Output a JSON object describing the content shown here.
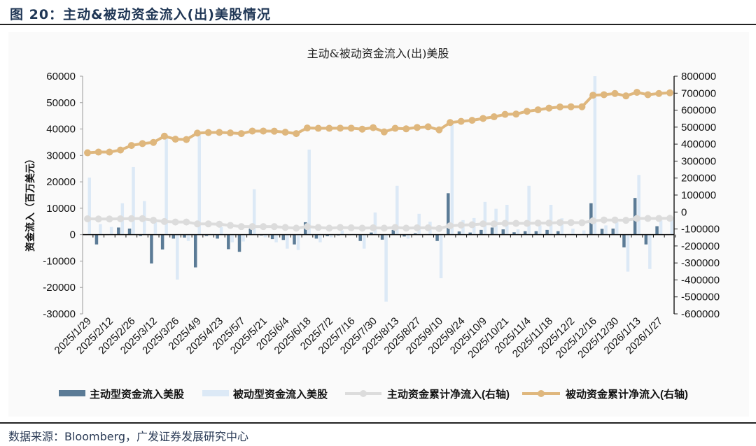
{
  "figure": {
    "caption": "图 20：主动&被动资金流入(出)美股情况",
    "source": "数据来源：Bloomberg，广发证券发展研究中心"
  },
  "chart_data": {
    "type": "bar+line",
    "title": "主动&被动资金流入(出)美股",
    "ylabel": "资金流入（百万美元）",
    "ylabel_right": "",
    "ylim": [
      -30000,
      60000
    ],
    "yticks": [
      60000,
      50000,
      40000,
      30000,
      20000,
      10000,
      0,
      -10000,
      -20000,
      -30000
    ],
    "ylim_right": [
      -600000,
      800000
    ],
    "yticks_right": [
      800000,
      700000,
      600000,
      500000,
      400000,
      300000,
      200000,
      100000,
      0,
      -100000,
      -200000,
      -300000,
      -400000,
      -500000,
      -600000
    ],
    "x_tick_labels": [
      "2025/1/29",
      "2025/2/12",
      "2025/2/26",
      "2025/3/12",
      "2025/3/26",
      "2025/4/9",
      "2025/4/23",
      "2025/5/7",
      "2025/5/21",
      "2025/6/4",
      "2025/6/18",
      "2025/7/2",
      "2025/7/16",
      "2025/7/30",
      "2025/8/13",
      "2025/8/27",
      "2025/9/10",
      "2025/9/24",
      "2025/10/9",
      "2025/10/21",
      "2025/11/4",
      "2025/11/18",
      "2025/12/2",
      "2025/12/16",
      "2025/12/30",
      "2026/1/13",
      "2026/1/27"
    ],
    "x_frequency": "weekly",
    "grid": false,
    "legend_position": "bottom",
    "series": [
      {
        "name": "主动型资金流入美股",
        "type": "bar",
        "axis": "left",
        "color": "#5b7b96",
        "values": [
          0,
          -3700,
          0,
          2700,
          2300,
          -500,
          -10900,
          -5600,
          -1500,
          -1100,
          -12400,
          -500,
          -1500,
          -5500,
          -6500,
          2300,
          -300,
          -1700,
          -2000,
          -3700,
          4700,
          -1500,
          -600,
          -300,
          -200,
          -2400,
          800,
          -1900,
          1800,
          -700,
          500,
          200,
          -2400,
          15700,
          1200,
          800,
          1800,
          2700,
          2000,
          900,
          1300,
          1300,
          1800,
          1300,
          200,
          0,
          11900,
          2200,
          2300,
          -4800,
          13900,
          -3700,
          3200,
          0
        ]
      },
      {
        "name": "被动型资金流入美股",
        "type": "bar",
        "axis": "left",
        "color": "#dce9f6",
        "values": [
          21600,
          4000,
          2900,
          11900,
          25600,
          12700,
          4700,
          37500,
          -17000,
          -2400,
          37800,
          0,
          2900,
          -2900,
          -2600,
          17200,
          -1000,
          -2900,
          -5300,
          -5800,
          32200,
          -2900,
          -1000,
          1600,
          300,
          -5300,
          8400,
          -25400,
          18500,
          -1500,
          7900,
          4900,
          -16500,
          42100,
          5500,
          6300,
          12400,
          9800,
          11300,
          2000,
          18500,
          3500,
          11300,
          6200,
          2300,
          1600,
          60000,
          3500,
          4700,
          -14000,
          22600,
          -13000,
          5400,
          6300
        ]
      },
      {
        "name": "主动资金累计净流入(右轴)",
        "type": "line",
        "axis": "right",
        "color": "#dcdcdc",
        "values": [
          -40000,
          -41000,
          -41000,
          -40000,
          -39000,
          -39000,
          -49000,
          -56000,
          -59000,
          -59000,
          -70000,
          -70000,
          -72000,
          -79000,
          -86000,
          -86000,
          -86000,
          -86000,
          -91000,
          -95000,
          -86000,
          -91000,
          -95000,
          -91000,
          -93000,
          -95000,
          -93000,
          -95000,
          -91000,
          -95000,
          -93000,
          -93000,
          -97000,
          -81000,
          -77000,
          -75000,
          -70000,
          -70000,
          -67000,
          -67000,
          -67000,
          -65000,
          -65000,
          -62000,
          -62000,
          -63000,
          -52000,
          -47000,
          -47000,
          -49000,
          -38000,
          -38000,
          -38000,
          -37000
        ]
      },
      {
        "name": "被动资金累计净流入(右轴)",
        "type": "line",
        "axis": "right",
        "color": "#dfb77d",
        "values": [
          349000,
          353000,
          353000,
          365000,
          392000,
          403000,
          410000,
          447000,
          429000,
          427000,
          465000,
          468000,
          469000,
          466000,
          462000,
          477000,
          477000,
          476000,
          470000,
          462000,
          495000,
          493000,
          493000,
          494000,
          494000,
          488000,
          497000,
          472000,
          493000,
          490000,
          498000,
          502000,
          484000,
          527000,
          534000,
          540000,
          551000,
          561000,
          575000,
          577000,
          593000,
          602000,
          612000,
          619000,
          620000,
          620000,
          688000,
          691000,
          698000,
          684000,
          705000,
          691000,
          698000,
          702000
        ]
      }
    ]
  }
}
